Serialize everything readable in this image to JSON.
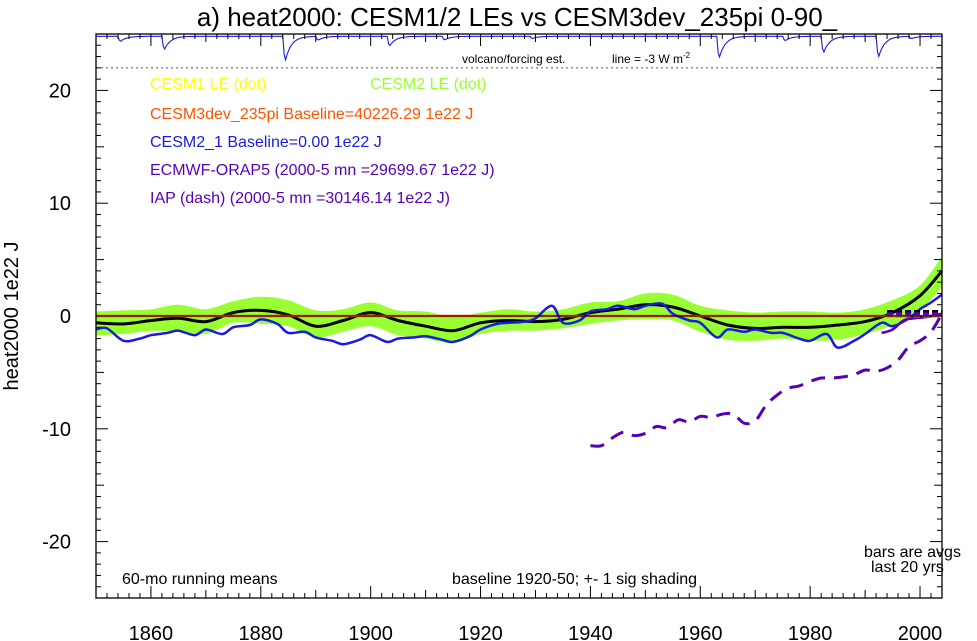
{
  "chart_data": {
    "type": "line",
    "title": "a) heat2000: CESM1/2 LEs vs CESM3dev_235pi 0-90_",
    "ylabel": "heat2000 1e22 J",
    "xlabel": "",
    "xlim": [
      1850,
      2004
    ],
    "ylim": [
      -25,
      25
    ],
    "x_ticks": [
      1860,
      1880,
      1900,
      1920,
      1940,
      1960,
      1980,
      2000
    ],
    "y_ticks": [
      -20,
      -10,
      0,
      10,
      20
    ],
    "y_tick_labels": [
      "-20",
      "-10",
      "0",
      "10",
      "20"
    ],
    "grid": false,
    "legend_placement": "upper-left inside",
    "legend": [
      {
        "text": "CESM1 LE (dot)",
        "color": "#ffff00"
      },
      {
        "text": "CESM2 LE (dot)",
        "color": "#99ff33"
      },
      {
        "text": "CESM3dev_235pi Baseline=40226.29 1e22 J",
        "color": "#ff5500"
      },
      {
        "text": "CESM2_1 Baseline=0.00 1e22 J",
        "color": "#1a1ae6"
      },
      {
        "text": "ECMWF-ORAP5 (2000-5 mn =29699.67 1e22 J)",
        "color": "#5500bb"
      },
      {
        "text": "IAP (dash) (2000-5 mn =30146.14 1e22 J)",
        "color": "#5500bb"
      }
    ],
    "annotations": {
      "volcano": "volcano/forcing est.",
      "line_label": "line = -3 W m",
      "line_sup": "-2",
      "running": "60-mo running means",
      "baseline": "baseline 1920-50; +- 1 sig shading",
      "bars1": "bars are avgs",
      "bars2": "last 20 yrs"
    },
    "volcano_reference_y": 22,
    "volcano_line": {
      "baseline_y": 24.8,
      "dips": [
        [
          1854,
          0.7
        ],
        [
          1862,
          1.8
        ],
        [
          1884,
          3.3
        ],
        [
          1890,
          0.5
        ],
        [
          1903,
          1.3
        ],
        [
          1913,
          0.5
        ],
        [
          1929,
          0.3
        ],
        [
          1963,
          2.9
        ],
        [
          1975,
          0.6
        ],
        [
          1982,
          2.2
        ],
        [
          1992,
          2.8
        ],
        [
          1998,
          0.3
        ]
      ]
    },
    "cesm2_shading": {
      "color": "#99ff33",
      "x": [
        1850,
        1855,
        1860,
        1865,
        1870,
        1875,
        1880,
        1885,
        1890,
        1895,
        1900,
        1905,
        1910,
        1915,
        1920,
        1925,
        1930,
        1935,
        1940,
        1945,
        1950,
        1955,
        1960,
        1965,
        1970,
        1975,
        1980,
        1985,
        1990,
        1995,
        2000,
        2004
      ],
      "upper": [
        0.4,
        0.5,
        0.6,
        1.0,
        0.6,
        1.3,
        1.7,
        1.4,
        0.5,
        0.6,
        1.2,
        0.5,
        0.4,
        -0.1,
        0.3,
        0.6,
        0.4,
        0.6,
        1.2,
        1.3,
        2.0,
        1.9,
        0.9,
        0.5,
        0.3,
        0.4,
        0.4,
        0.3,
        0.6,
        1.4,
        2.7,
        5.3
      ],
      "lower": [
        -1.7,
        -1.6,
        -1.3,
        -1.4,
        -1.6,
        -0.6,
        -0.7,
        -0.9,
        -1.9,
        -1.4,
        -0.9,
        -1.7,
        -2.0,
        -2.4,
        -1.6,
        -1.3,
        -1.3,
        -1.1,
        -0.7,
        -0.4,
        -0.3,
        -0.4,
        -1.4,
        -2.1,
        -2.2,
        -2.0,
        -2.2,
        -2.1,
        -1.6,
        -0.8,
        0.5,
        2.6
      ]
    },
    "series": [
      {
        "name": "CESM2 LE (dot)",
        "color": "#000000",
        "width": 3,
        "x": [
          1850,
          1855,
          1860,
          1865,
          1870,
          1875,
          1880,
          1885,
          1890,
          1895,
          1900,
          1905,
          1910,
          1915,
          1920,
          1925,
          1930,
          1935,
          1940,
          1945,
          1950,
          1955,
          1960,
          1965,
          1970,
          1975,
          1980,
          1985,
          1990,
          1995,
          2000,
          2004
        ],
        "y": [
          -0.6,
          -0.7,
          -0.4,
          -0.2,
          -0.5,
          0.3,
          0.5,
          0.1,
          -0.9,
          -0.4,
          0.3,
          -0.4,
          -0.9,
          -1.3,
          -0.6,
          -0.4,
          -0.5,
          -0.3,
          0.3,
          0.6,
          1.0,
          0.8,
          0.0,
          -0.8,
          -1.1,
          -1.0,
          -1.0,
          -0.8,
          -0.5,
          0.3,
          1.8,
          4.0
        ]
      },
      {
        "name": "CESM3dev_235pi Baseline=40226.29 1e22 J",
        "color": "#ff5500",
        "width": 2.5,
        "x": [
          1850,
          2004
        ],
        "y": [
          0.0,
          0.0
        ]
      },
      {
        "name": "CESM2_1 Baseline=0.00 1e22 J",
        "color": "#1a1ae6",
        "width": 2.5,
        "x": [
          1850,
          1852,
          1855,
          1858,
          1860,
          1863,
          1865,
          1868,
          1870,
          1873,
          1875,
          1878,
          1880,
          1883,
          1885,
          1888,
          1890,
          1893,
          1895,
          1898,
          1900,
          1903,
          1905,
          1908,
          1910,
          1913,
          1915,
          1918,
          1920,
          1923,
          1925,
          1928,
          1930,
          1933,
          1935,
          1938,
          1940,
          1943,
          1945,
          1948,
          1950,
          1953,
          1955,
          1958,
          1960,
          1963,
          1965,
          1968,
          1970,
          1973,
          1975,
          1978,
          1980,
          1983,
          1985,
          1988,
          1990,
          1993,
          1995,
          1998,
          2000,
          2002,
          2004
        ],
        "y": [
          -1.2,
          -1.1,
          -2.2,
          -2.0,
          -1.7,
          -1.5,
          -1.3,
          -1.7,
          -1.2,
          -1.6,
          -1.0,
          -0.8,
          -0.3,
          -0.7,
          -1.5,
          -1.4,
          -1.9,
          -2.2,
          -2.5,
          -2.1,
          -1.7,
          -2.3,
          -2.0,
          -1.9,
          -1.8,
          -2.1,
          -2.3,
          -1.8,
          -1.2,
          -0.7,
          -0.6,
          -0.5,
          -0.2,
          0.9,
          -0.6,
          -0.4,
          0.4,
          0.6,
          0.9,
          0.6,
          0.9,
          1.1,
          0.2,
          -0.4,
          -0.6,
          -1.9,
          -1.2,
          -1.4,
          -1.2,
          -1.5,
          -1.5,
          -2.0,
          -2.2,
          -1.6,
          -2.8,
          -2.2,
          -1.6,
          -0.6,
          -0.9,
          -0.2,
          0.6,
          1.2,
          1.9
        ]
      },
      {
        "name": "ECMWF-ORAP5 (2000-5 mn =29699.67 1e22 J)",
        "color": "#5500bb",
        "width": 2.5,
        "x": [
          1993,
          1995,
          1997,
          1999,
          2001,
          2003,
          2004
        ],
        "y": [
          -1.5,
          -1.2,
          -0.4,
          -0.2,
          -0.1,
          0.1,
          0.2
        ]
      },
      {
        "name": "IAP (dash) (2000-5 mn =30146.14 1e22 J)",
        "color": "#5500bb",
        "width": 3,
        "dash": true,
        "x": [
          1940,
          1942,
          1944,
          1946,
          1948,
          1950,
          1952,
          1954,
          1956,
          1958,
          1960,
          1962,
          1964,
          1966,
          1968,
          1970,
          1972,
          1974,
          1976,
          1978,
          1980,
          1982,
          1984,
          1986,
          1988,
          1990,
          1992,
          1994,
          1996,
          1998,
          2000,
          2002,
          2004
        ],
        "y": [
          -11.5,
          -11.5,
          -10.8,
          -10.3,
          -10.6,
          -10.4,
          -9.8,
          -9.9,
          -9.2,
          -9.4,
          -8.9,
          -9.0,
          -8.7,
          -8.7,
          -9.5,
          -9.3,
          -7.9,
          -7.0,
          -6.4,
          -6.2,
          -5.8,
          -5.5,
          -5.5,
          -5.4,
          -5.2,
          -4.8,
          -4.9,
          -4.6,
          -3.9,
          -2.7,
          -2.2,
          -1.4,
          0.2
        ]
      }
    ],
    "bars": [
      {
        "x": [
          1994,
          2004
        ],
        "y": 0.0,
        "color": "#ff5500"
      },
      {
        "x": [
          1994,
          2004
        ],
        "y": 0.4,
        "color": "#000000"
      },
      {
        "x": [
          1994,
          2004
        ],
        "y": 0.2,
        "color": "#5500bb"
      }
    ]
  }
}
